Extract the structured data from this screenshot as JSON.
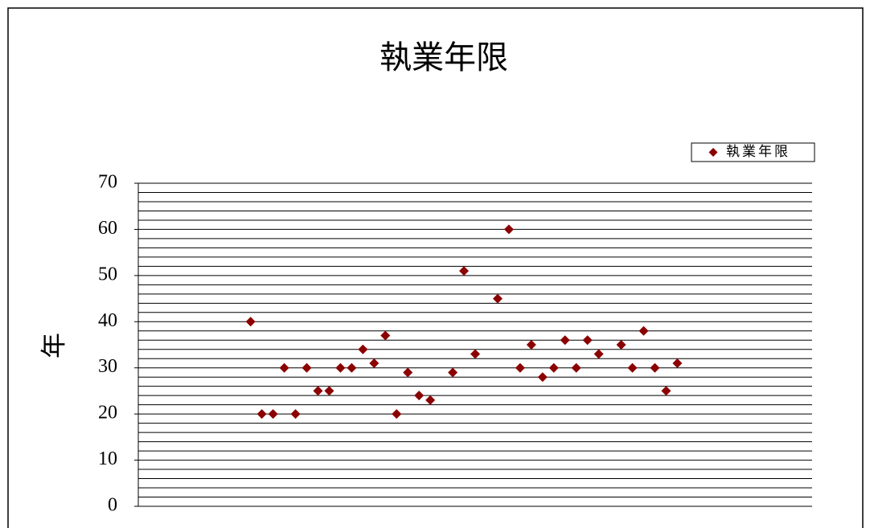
{
  "chart_data": {
    "type": "scatter",
    "title": "執業年限",
    "ylabel": "年",
    "series": [
      {
        "name": "執業年限",
        "color": "#8b0000",
        "x": [
          10,
          11,
          12,
          13,
          14,
          15,
          16,
          17,
          18,
          19,
          20,
          21,
          22,
          23,
          24,
          25,
          26,
          28,
          29,
          30,
          32,
          33,
          34,
          35,
          36,
          37,
          38,
          39,
          40,
          41,
          43,
          44,
          45,
          46,
          47,
          48
        ],
        "values": [
          40,
          20,
          20,
          30,
          20,
          30,
          25,
          25,
          30,
          30,
          34,
          31,
          37,
          20,
          29,
          24,
          23,
          29,
          51,
          33,
          45,
          60,
          30,
          35,
          28,
          30,
          36,
          30,
          36,
          33,
          35,
          30,
          38,
          30,
          25,
          31
        ]
      }
    ],
    "xlim": [
      0,
      60
    ],
    "ylim": [
      0,
      70
    ],
    "yticks": [
      0,
      10,
      20,
      30,
      40,
      50,
      60,
      70
    ],
    "minor_yticks": [
      0,
      2,
      4,
      6,
      8,
      10,
      12,
      14,
      16,
      18,
      20,
      22,
      24,
      26,
      28,
      30,
      32,
      34,
      36,
      38,
      40,
      42,
      44,
      46,
      48,
      50,
      52,
      54,
      56,
      58,
      60,
      62,
      64,
      66,
      68,
      70
    ],
    "grid": true,
    "legend": "top-right"
  }
}
